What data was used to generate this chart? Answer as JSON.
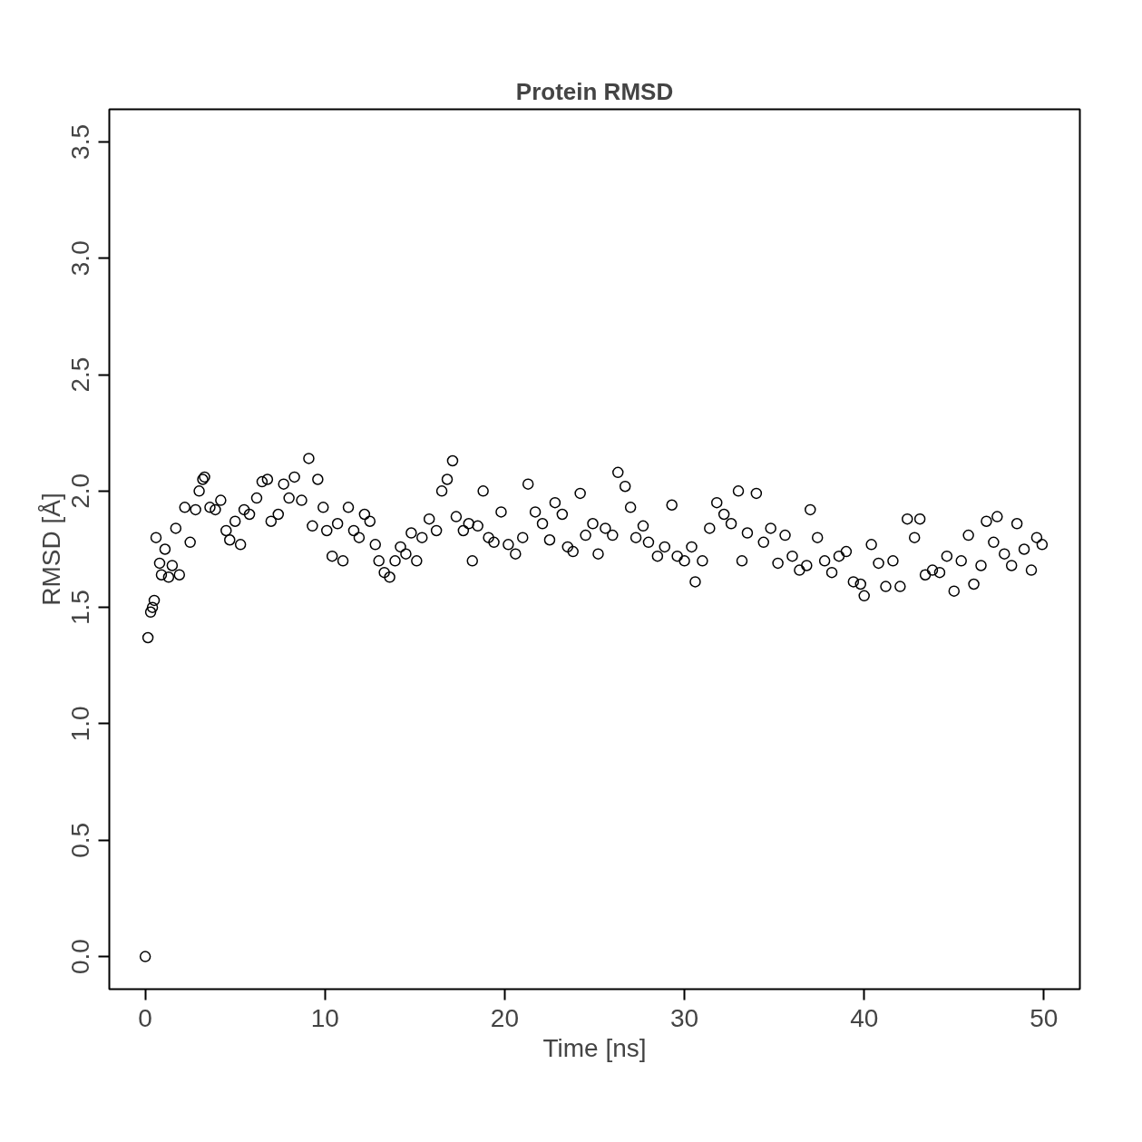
{
  "chart_data": {
    "type": "scatter",
    "title": "Protein RMSD",
    "xlabel": "Time [ns]",
    "ylabel": "RMSD [Å]",
    "xlim": [
      -2,
      52
    ],
    "ylim": [
      -0.14,
      3.64
    ],
    "xticks": [
      0,
      10,
      20,
      30,
      40,
      50
    ],
    "yticks": [
      {
        "value": 0,
        "label": "0.0"
      },
      {
        "value": 0.5,
        "label": "0.5"
      },
      {
        "value": 1,
        "label": "1.0"
      },
      {
        "value": 1.5,
        "label": "1.5"
      },
      {
        "value": 2,
        "label": "2.0"
      },
      {
        "value": 2.5,
        "label": "2.5"
      },
      {
        "value": 3,
        "label": "3.0"
      },
      {
        "value": 3.5,
        "label": "3.5"
      }
    ],
    "grid": false,
    "marker": "circle",
    "series": [
      {
        "color": "#000000",
        "x": [
          0,
          0.15,
          0.3,
          0.4,
          0.5,
          0.6,
          0.8,
          0.9,
          1.1,
          1.3,
          1.5,
          1.7,
          1.9,
          2.2,
          2.5,
          2.8,
          3.0,
          3.2,
          3.3,
          3.6,
          3.9,
          4.2,
          4.5,
          4.7,
          5.0,
          5.3,
          5.5,
          5.8,
          6.2,
          6.5,
          6.8,
          7.0,
          7.4,
          7.7,
          8.0,
          8.3,
          8.7,
          9.1,
          9.3,
          9.6,
          9.9,
          10.1,
          10.4,
          10.7,
          11.0,
          11.3,
          11.6,
          11.9,
          12.2,
          12.5,
          12.8,
          13.0,
          13.3,
          13.6,
          13.9,
          14.2,
          14.5,
          14.8,
          15.1,
          15.4,
          15.8,
          16.2,
          16.5,
          16.8,
          17.1,
          17.3,
          17.7,
          18.0,
          18.2,
          18.5,
          18.8,
          19.1,
          19.4,
          19.8,
          20.2,
          20.6,
          21.0,
          21.3,
          21.7,
          22.1,
          22.5,
          22.8,
          23.2,
          23.5,
          23.8,
          24.2,
          24.5,
          24.9,
          25.2,
          25.6,
          26.0,
          26.3,
          26.7,
          27.0,
          27.3,
          27.7,
          28.0,
          28.5,
          28.9,
          29.3,
          29.6,
          30.0,
          30.4,
          30.6,
          31.0,
          31.4,
          31.8,
          32.2,
          32.6,
          33.0,
          33.2,
          33.5,
          34.0,
          34.4,
          34.8,
          35.2,
          35.6,
          36.0,
          36.4,
          36.8,
          37.0,
          37.4,
          37.8,
          38.2,
          38.6,
          39.0,
          39.4,
          39.8,
          40.0,
          40.4,
          40.8,
          41.2,
          41.6,
          42.0,
          42.4,
          42.8,
          43.1,
          43.4,
          43.8,
          44.2,
          44.6,
          45.0,
          45.4,
          45.8,
          46.1,
          46.5,
          46.8,
          47.2,
          47.4,
          47.8,
          48.2,
          48.5,
          48.9,
          49.3,
          49.6,
          49.9
        ],
        "values": [
          0,
          1.37,
          1.48,
          1.5,
          1.53,
          1.8,
          1.69,
          1.64,
          1.75,
          1.63,
          1.68,
          1.84,
          1.64,
          1.93,
          1.78,
          1.92,
          2.0,
          2.05,
          2.06,
          1.93,
          1.92,
          1.96,
          1.83,
          1.79,
          1.87,
          1.77,
          1.92,
          1.9,
          1.97,
          2.04,
          2.05,
          1.87,
          1.9,
          2.03,
          1.97,
          2.06,
          1.96,
          2.14,
          1.85,
          2.05,
          1.93,
          1.83,
          1.72,
          1.86,
          1.7,
          1.93,
          1.83,
          1.8,
          1.9,
          1.87,
          1.77,
          1.7,
          1.65,
          1.63,
          1.7,
          1.76,
          1.73,
          1.82,
          1.7,
          1.8,
          1.88,
          1.83,
          2.0,
          2.05,
          2.13,
          1.89,
          1.83,
          1.86,
          1.7,
          1.85,
          2.0,
          1.8,
          1.78,
          1.91,
          1.77,
          1.73,
          1.8,
          2.03,
          1.91,
          1.86,
          1.79,
          1.95,
          1.9,
          1.76,
          1.74,
          1.99,
          1.81,
          1.86,
          1.73,
          1.84,
          1.81,
          2.08,
          2.02,
          1.93,
          1.8,
          1.85,
          1.78,
          1.72,
          1.76,
          1.94,
          1.72,
          1.7,
          1.76,
          1.61,
          1.7,
          1.84,
          1.95,
          1.9,
          1.86,
          2.0,
          1.7,
          1.82,
          1.99,
          1.78,
          1.84,
          1.69,
          1.81,
          1.72,
          1.66,
          1.68,
          1.92,
          1.8,
          1.7,
          1.65,
          1.72,
          1.74,
          1.61,
          1.6,
          1.55,
          1.77,
          1.69,
          1.59,
          1.7,
          1.59,
          1.88,
          1.8,
          1.88,
          1.64,
          1.66,
          1.65,
          1.72,
          1.57,
          1.7,
          1.81,
          1.6,
          1.68,
          1.87,
          1.78,
          1.89,
          1.73,
          1.68,
          1.86,
          1.75,
          1.66,
          1.8,
          1.77
        ]
      }
    ]
  }
}
